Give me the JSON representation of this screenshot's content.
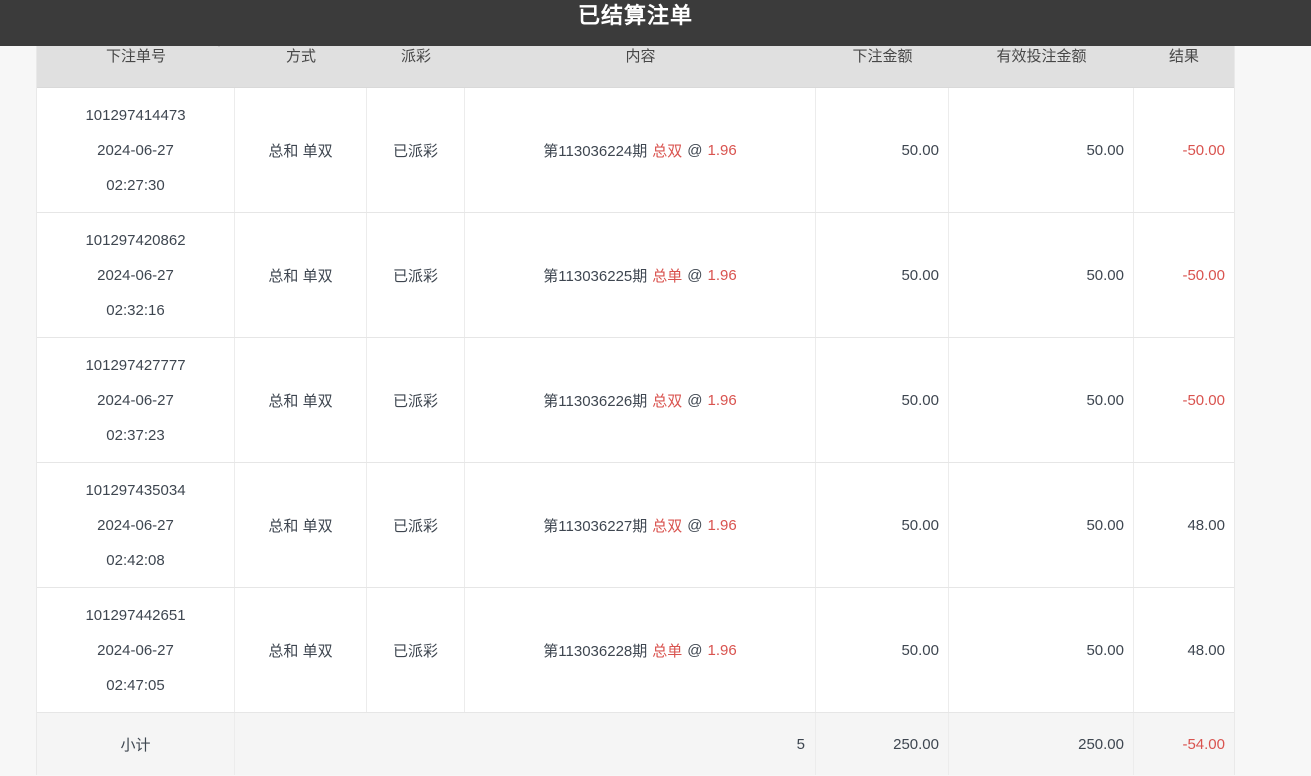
{
  "title": "已结算注单",
  "colors": {
    "accent_red": "#d9534f",
    "titlebar_bg": "#3b3b3b",
    "header_bg": "#e0e0e0",
    "text_dark": "#3e4650"
  },
  "table": {
    "at_sign": "@",
    "columns": [
      {
        "label": "下注单号",
        "sortable": true
      },
      {
        "label": "方式"
      },
      {
        "label": "派彩"
      },
      {
        "label": "内容"
      },
      {
        "label": "下注金额"
      },
      {
        "label": "有效投注金额"
      },
      {
        "label": "结果"
      }
    ],
    "rows": [
      {
        "order_no": "101297414473",
        "date": "2024-06-27",
        "time": "02:27:30",
        "method": "总和 单双",
        "payout": "已派彩",
        "period": "第113036224期",
        "pick": "总双",
        "odds": "1.96",
        "amount": "50.00",
        "valid_amount": "50.00",
        "result": "-50.00"
      },
      {
        "order_no": "101297420862",
        "date": "2024-06-27",
        "time": "02:32:16",
        "method": "总和 单双",
        "payout": "已派彩",
        "period": "第113036225期",
        "pick": "总单",
        "odds": "1.96",
        "amount": "50.00",
        "valid_amount": "50.00",
        "result": "-50.00"
      },
      {
        "order_no": "101297427777",
        "date": "2024-06-27",
        "time": "02:37:23",
        "method": "总和 单双",
        "payout": "已派彩",
        "period": "第113036226期",
        "pick": "总双",
        "odds": "1.96",
        "amount": "50.00",
        "valid_amount": "50.00",
        "result": "-50.00"
      },
      {
        "order_no": "101297435034",
        "date": "2024-06-27",
        "time": "02:42:08",
        "method": "总和 单双",
        "payout": "已派彩",
        "period": "第113036227期",
        "pick": "总双",
        "odds": "1.96",
        "amount": "50.00",
        "valid_amount": "50.00",
        "result": "48.00"
      },
      {
        "order_no": "101297442651",
        "date": "2024-06-27",
        "time": "02:47:05",
        "method": "总和 单双",
        "payout": "已派彩",
        "period": "第113036228期",
        "pick": "总单",
        "odds": "1.96",
        "amount": "50.00",
        "valid_amount": "50.00",
        "result": "48.00"
      }
    ],
    "summary": {
      "label": "小计",
      "count": "5",
      "amount": "250.00",
      "valid_amount": "250.00",
      "result": "-54.00"
    }
  }
}
